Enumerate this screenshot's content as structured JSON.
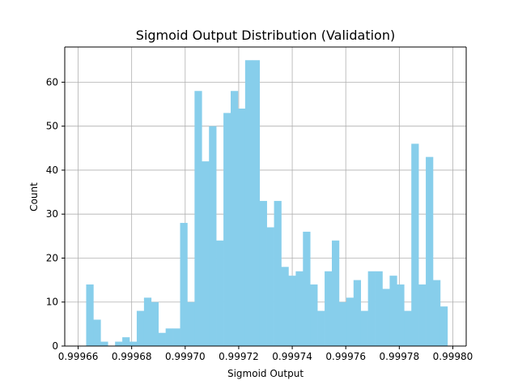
{
  "chart_data": {
    "type": "bar",
    "title": "Sigmoid Output Distribution (Validation)",
    "xlabel": "Sigmoid Output",
    "ylabel": "Count",
    "xlim": [
      0.999655,
      0.999805
    ],
    "ylim": [
      0,
      68
    ],
    "grid": true,
    "bar_color": "#87CEEB",
    "x_ticks": [
      0.99966,
      0.99968,
      0.9997,
      0.99972,
      0.99974,
      0.99976,
      0.99978,
      0.9998
    ],
    "x_tick_labels": [
      "0.99966",
      "0.99968",
      "0.99970",
      "0.99972",
      "0.99974",
      "0.99976",
      "0.99978",
      "0.99980"
    ],
    "y_ticks": [
      0,
      10,
      20,
      30,
      40,
      50,
      60
    ],
    "y_tick_labels": [
      "0",
      "10",
      "20",
      "30",
      "40",
      "50",
      "60"
    ],
    "bins": {
      "start": 0.999663,
      "end": 0.999798,
      "counts": [
        14,
        6,
        1,
        0,
        1,
        2,
        1,
        8,
        11,
        10,
        3,
        4,
        4,
        28,
        10,
        58,
        42,
        50,
        24,
        53,
        58,
        54,
        65,
        65,
        33,
        27,
        33,
        18,
        16,
        17,
        26,
        14,
        8,
        17,
        24,
        10,
        11,
        15,
        8,
        17,
        17,
        13,
        16,
        14,
        8,
        46,
        14,
        43,
        15,
        9
      ]
    }
  }
}
